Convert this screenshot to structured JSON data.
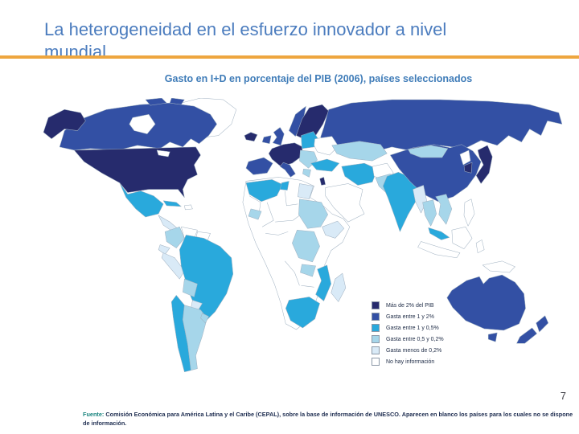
{
  "slide": {
    "title": "La heterogeneidad en el esfuerzo innovador a nivel mundial",
    "subtitle": "Gasto en I+D en porcentaje del PIB (2006), países seleccionados",
    "page_number": "7",
    "footer": {
      "source_label": "Fuente:",
      "source_text": " Comisión Económica para América Latina y el Caribe (CEPAL), sobre la base de información de UNESCO. Aparecen en blanco los países para los cuales no se dispone de información."
    },
    "colors": {
      "title": "#4B7CBE",
      "subtitle": "#3F7CB8",
      "accent_rule": "#EEA63F",
      "source_label": "#18847E",
      "footer_text": "#1E2D50"
    }
  },
  "chart_data": {
    "type": "choropleth-map",
    "title": "Gasto en I+D en porcentaje del PIB (2006), países seleccionados",
    "unit": "% del PIB",
    "year": "2006",
    "legend_position": "overlay-bottom-right",
    "legend": [
      {
        "category": "cat1",
        "label": "Más de 2% del PIB",
        "color": "#262B6D"
      },
      {
        "category": "cat2",
        "label": "Gasta entre 1 y 2%",
        "color": "#3350A4"
      },
      {
        "category": "cat3",
        "label": "Gasta entre 1 y 0,5%",
        "color": "#29A9DC"
      },
      {
        "category": "cat4",
        "label": "Gasta entre 0,5 y 0,2%",
        "color": "#A6D6EA"
      },
      {
        "category": "cat5",
        "label": "Gasta menos de 0,2%",
        "color": "#D9EAF7"
      },
      {
        "category": "cat6",
        "label": "No hay información",
        "color": "#FFFFFF"
      }
    ],
    "regions": {
      "alaska": "cat1",
      "usa": "cat1",
      "canada": "cat2",
      "canada-arctic-1": "cat2",
      "canada-arctic-2": "cat2",
      "greenland": "cat6",
      "hudson-bay": "water",
      "great-lakes": "water",
      "mexico": "cat3",
      "cuba": "cat3",
      "hispaniola": "cat6",
      "central-america": "cat5",
      "colombia": "cat4",
      "venezuela": "cat6",
      "guianas": "cat6",
      "ecuador": "cat5",
      "peru": "cat5",
      "brazil": "cat3",
      "bolivia": "cat4",
      "paraguay": "cat5",
      "chile": "cat3",
      "argentina": "cat4",
      "uruguay": "cat4",
      "iceland": "cat1",
      "ireland": "cat2",
      "uk": "cat2",
      "norway": "cat2",
      "sweden-finland": "cat1",
      "france-germany": "cat1",
      "iberia": "cat2",
      "italy": "cat2",
      "poland-baltics": "cat3",
      "ukraine": "cat6",
      "balkans": "cat4",
      "greece": "cat4",
      "turkey": "cat3",
      "israel": "cat1",
      "russia": "cat2",
      "kazakhstan": "cat4",
      "saudi-arabia": "cat6",
      "iran": "cat3",
      "afghanistan": "cat6",
      "pakistan": "cat4",
      "india": "cat3",
      "china": "cat2",
      "mongolia": "cat4",
      "myanmar": "cat5",
      "thailand": "cat4",
      "vietnam": "cat4",
      "malaysia": "cat3",
      "borneo": "cat6",
      "sumatra-java": "cat6",
      "sulawesi": "cat6",
      "philippines": "cat6",
      "north-korea": "cat6",
      "south-korea": "cat1",
      "japan": "cat1",
      "papua-new-guinea": "cat6",
      "australia": "cat2",
      "tasmania": "cat2",
      "new-zealand-north": "cat2",
      "new-zealand-south": "cat2",
      "africa-base": "cat6",
      "morocco-algeria": "cat3",
      "tunisia": "cat3",
      "egypt": "cat5",
      "west-africa-patch": "cat4",
      "sudan": "cat4",
      "ethiopia": "cat5",
      "dr-congo": "cat4",
      "zambia": "cat4",
      "mozambique": "cat3",
      "south-africa": "cat3",
      "madagascar": "cat5"
    }
  }
}
